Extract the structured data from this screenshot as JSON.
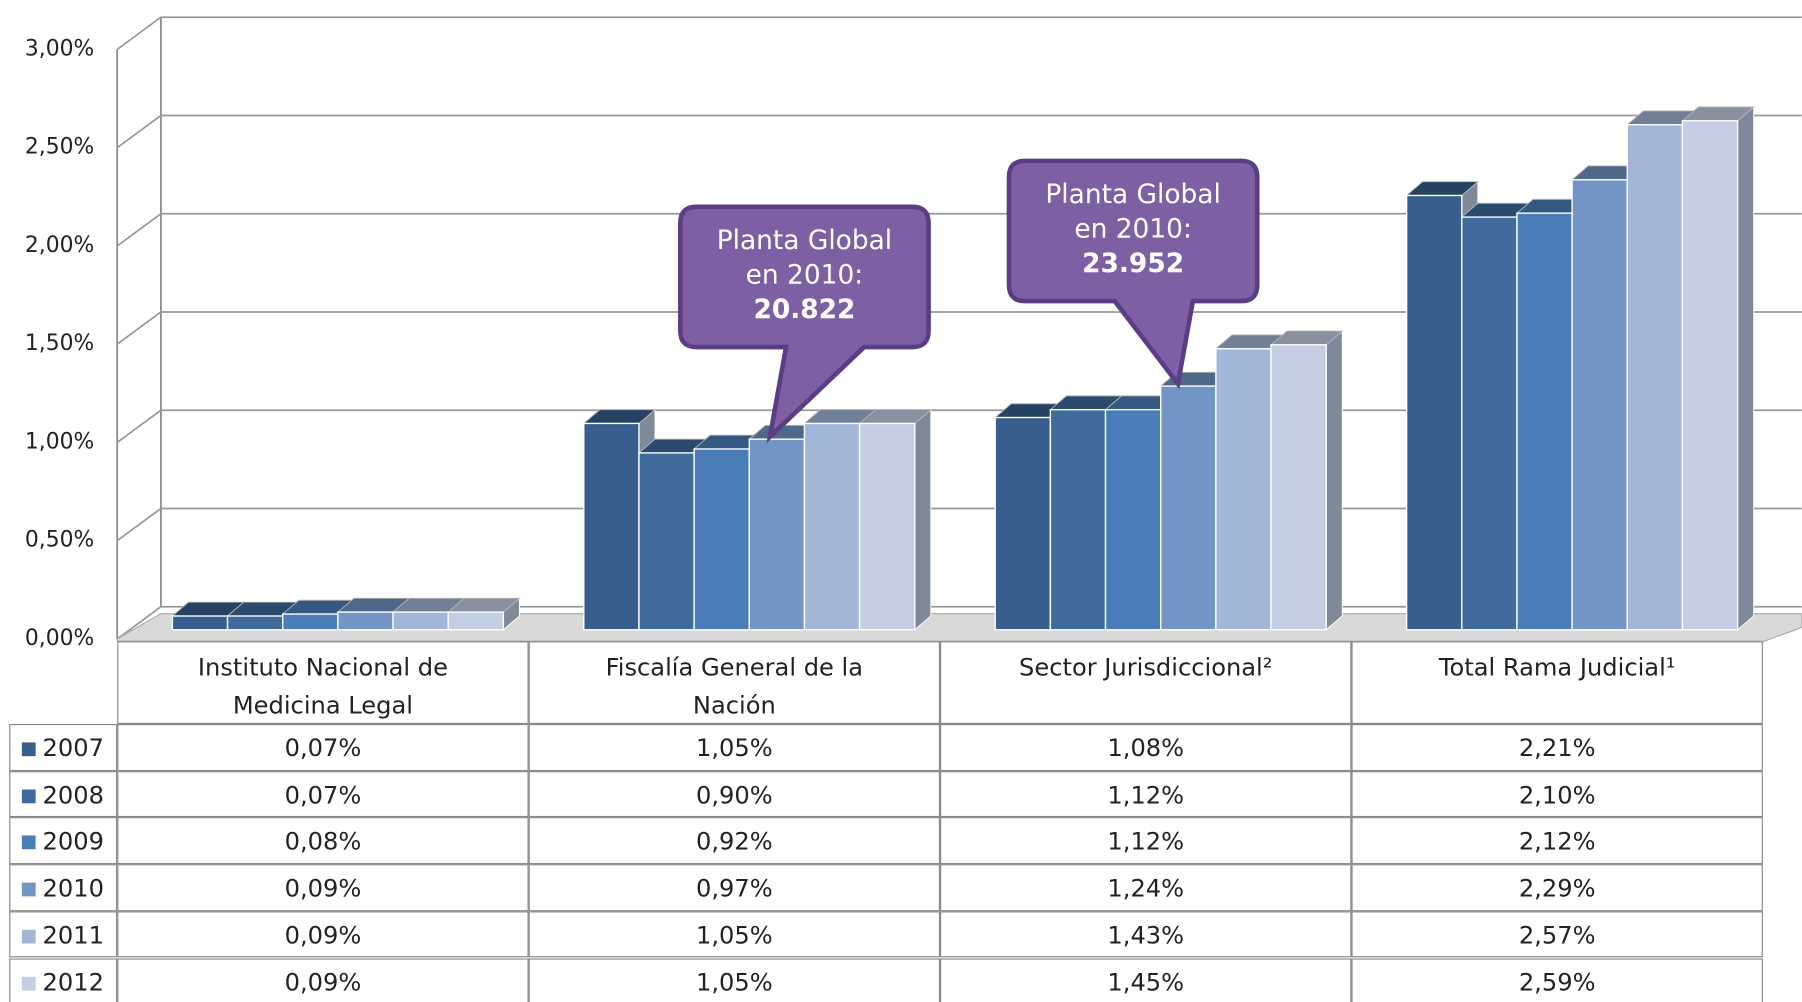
{
  "chart_data": {
    "type": "bar3d",
    "categories": [
      "Instituto Nacional de Medicina Legal",
      "Fiscalía General de la Nación",
      "Sector Jurisdiccional²",
      "Total Rama Judicial¹"
    ],
    "series": [
      {
        "name": "2007",
        "color": "#375e8c",
        "values": [
          0.07,
          1.05,
          1.08,
          2.21
        ],
        "value_labels": [
          "0,07%",
          "1,05%",
          "1,08%",
          "2,21%"
        ]
      },
      {
        "name": "2008",
        "color": "#3f6a9c",
        "values": [
          0.07,
          0.9,
          1.12,
          2.1
        ],
        "value_labels": [
          "0,07%",
          "0,90%",
          "1,12%",
          "2,10%"
        ]
      },
      {
        "name": "2009",
        "color": "#4a7db8",
        "values": [
          0.08,
          0.92,
          1.12,
          2.12
        ],
        "value_labels": [
          "0,08%",
          "0,92%",
          "1,12%",
          "2,12%"
        ]
      },
      {
        "name": "2010",
        "color": "#7295c5",
        "values": [
          0.09,
          0.97,
          1.24,
          2.29
        ],
        "value_labels": [
          "0,09%",
          "0,97%",
          "1,24%",
          "2,29%"
        ]
      },
      {
        "name": "2011",
        "color": "#a2b7d8",
        "values": [
          0.09,
          1.05,
          1.43,
          2.57
        ],
        "value_labels": [
          "0,09%",
          "1,05%",
          "1,43%",
          "2,57%"
        ]
      },
      {
        "name": "2012",
        "color": "#c3cde3",
        "values": [
          0.09,
          1.05,
          1.45,
          2.59
        ],
        "value_labels": [
          "0,09%",
          "1,05%",
          "1,45%",
          "2,59%"
        ]
      }
    ],
    "ylim": [
      0,
      3
    ],
    "yticks": [
      {
        "value": 0,
        "label": "0,00%"
      },
      {
        "value": 0.5,
        "label": "0,50%"
      },
      {
        "value": 1,
        "label": "1,00%"
      },
      {
        "value": 1.5,
        "label": "1,50%"
      },
      {
        "value": 2,
        "label": "2,00%"
      },
      {
        "value": 2.5,
        "label": "2,50%"
      },
      {
        "value": 3,
        "label": "3,00%"
      }
    ],
    "grid": true,
    "annotations": [
      {
        "lines": [
          "Planta Global",
          "en 2010:",
          "20.822"
        ]
      },
      {
        "lines": [
          "Planta Global",
          "en 2010:",
          "23.952"
        ]
      }
    ]
  }
}
